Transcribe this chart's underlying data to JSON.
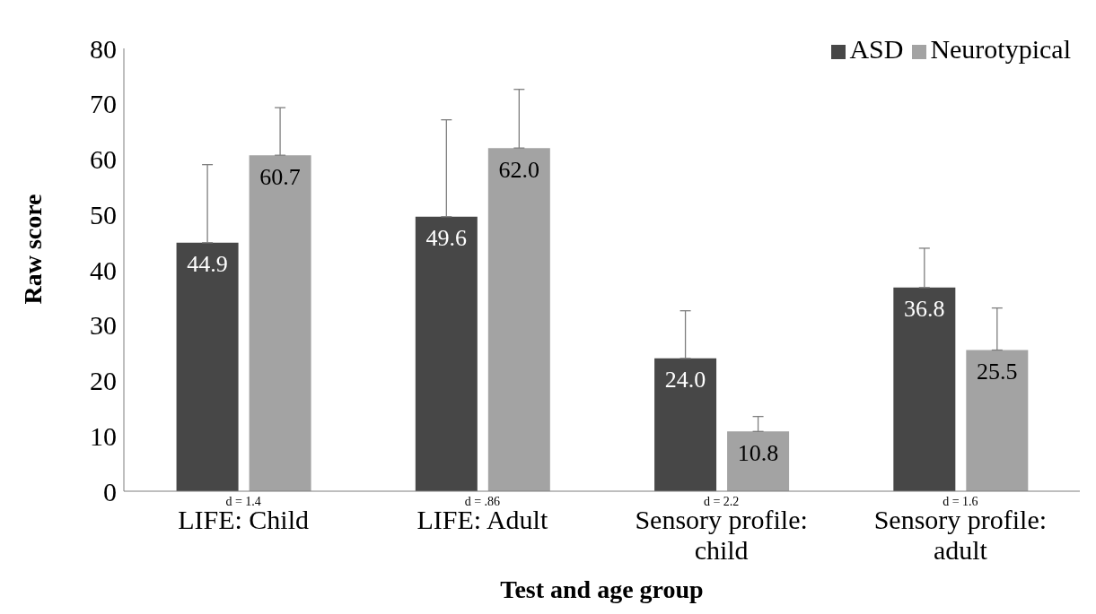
{
  "chart_data": {
    "type": "bar",
    "xlabel": "Test and age group",
    "ylabel": "Raw score",
    "categories": [
      "LIFE: Child",
      "LIFE: Adult",
      "Sensory profile: child",
      "Sensory profile: adult"
    ],
    "series": [
      {
        "name": "ASD",
        "color": "#474747",
        "values": [
          44.9,
          49.6,
          24.0,
          36.8
        ],
        "value_labels": [
          "44.9",
          "49.6",
          "24.0",
          "36.8"
        ],
        "errors": [
          [
            44.9,
            59.0
          ],
          [
            49.6,
            67.1
          ],
          [
            24.0,
            32.6
          ],
          [
            36.8,
            43.9
          ]
        ]
      },
      {
        "name": "Neurotypical",
        "color": "#a3a3a3",
        "values": [
          60.7,
          62.0,
          10.8,
          25.5
        ],
        "value_labels": [
          "60.7",
          "62.0",
          "10.8",
          "25.5"
        ],
        "errors": [
          [
            60.7,
            69.3
          ],
          [
            62.0,
            72.6
          ],
          [
            10.8,
            13.5
          ],
          [
            25.5,
            33.1
          ]
        ]
      }
    ],
    "ylim": [
      0,
      80
    ],
    "yticks": [
      0,
      10,
      20,
      30,
      40,
      50,
      60,
      70,
      80
    ],
    "grid": false,
    "legend": "top right",
    "annotations": [
      "d = 1.4",
      "d = .86",
      "d = 2.2",
      "d = 1.6"
    ]
  }
}
